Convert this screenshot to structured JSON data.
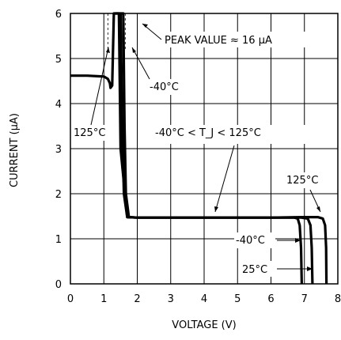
{
  "chart_data": {
    "type": "line",
    "title": "",
    "xlabel": "VOLTAGE (V)",
    "ylabel": "CURRENT (μA)",
    "xlim": [
      0,
      8
    ],
    "ylim": [
      0,
      6
    ],
    "xticks": [
      "0",
      "1",
      "2",
      "3",
      "4",
      "5",
      "6",
      "7",
      "8"
    ],
    "yticks": [
      "0",
      "1",
      "2",
      "3",
      "4",
      "5",
      "6"
    ],
    "grid": true,
    "series": [
      {
        "name": "125°C",
        "x": [
          0.0,
          0.5,
          1.0,
          1.12,
          1.18,
          1.2,
          1.25,
          1.3,
          1.45,
          1.5,
          1.7,
          2.0,
          4.0,
          6.0,
          7.0,
          7.4,
          7.55,
          7.62,
          7.65,
          7.66
        ],
        "y": [
          4.62,
          4.62,
          4.6,
          4.55,
          4.45,
          4.35,
          4.4,
          6.0,
          6.0,
          3.0,
          1.48,
          1.47,
          1.47,
          1.47,
          1.48,
          1.48,
          1.45,
          1.3,
          0.8,
          0.0
        ]
      },
      {
        "name": "25°C",
        "x": [
          1.35,
          1.5,
          1.55,
          1.6,
          1.7,
          2.0,
          4.0,
          6.0,
          6.9,
          7.1,
          7.18,
          7.22,
          7.24
        ],
        "y": [
          6.0,
          6.0,
          3.5,
          2.0,
          1.48,
          1.47,
          1.47,
          1.47,
          1.47,
          1.45,
          1.3,
          0.8,
          0.0
        ]
      },
      {
        "name": "-40°C",
        "x": [
          1.5,
          1.58,
          1.62,
          1.66,
          1.75,
          2.0,
          4.0,
          6.0,
          6.7,
          6.8,
          6.86,
          6.9,
          6.92
        ],
        "y": [
          6.0,
          6.0,
          3.5,
          2.0,
          1.48,
          1.47,
          1.47,
          1.47,
          1.47,
          1.45,
          1.3,
          0.8,
          0.0
        ]
      }
    ],
    "annotations": [
      {
        "text": "PEAK VALUE ≈ 16 μA"
      },
      {
        "text": "-40°C"
      },
      {
        "text": "125°C"
      },
      {
        "text": "-40°C < T_J < 125°C"
      },
      {
        "text": "125°C"
      },
      {
        "text": "-40°C"
      },
      {
        "text": "25°C"
      }
    ]
  }
}
